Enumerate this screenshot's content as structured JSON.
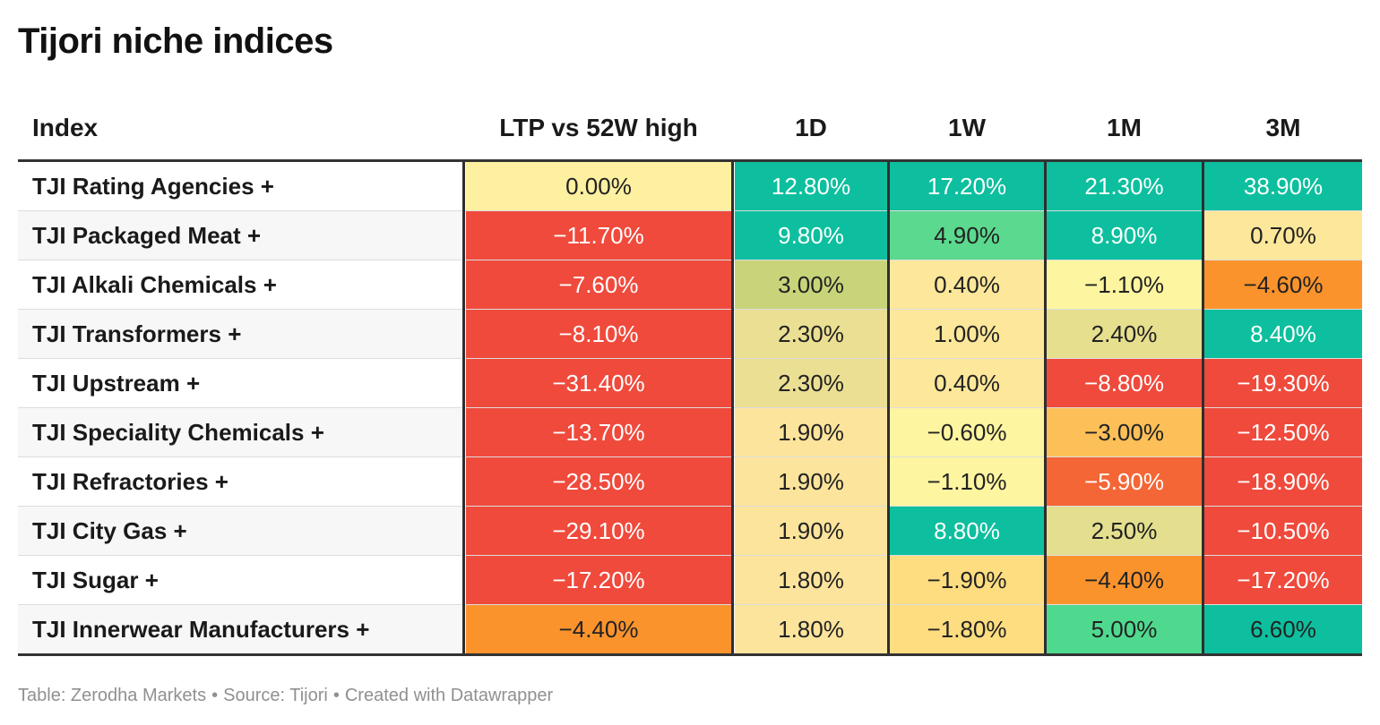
{
  "title": "Tijori niche indices",
  "chart_data": {
    "type": "table",
    "title": "Tijori niche indices",
    "columns": [
      "Index",
      "LTP vs 52W high",
      "1D",
      "1W",
      "1M",
      "3M"
    ],
    "rows": [
      {
        "label": "TJI Rating Agencies +",
        "values": [
          "0.00%",
          "12.80%",
          "17.20%",
          "21.30%",
          "38.90%"
        ],
        "colors": [
          "#fdf0a0",
          "#0dbf9e",
          "#0dbf9e",
          "#0dbf9e",
          "#0dbf9e"
        ],
        "text_colors": [
          "#222222",
          "#ffffff",
          "#ffffff",
          "#ffffff",
          "#ffffff"
        ]
      },
      {
        "label": "TJI Packaged Meat +",
        "values": [
          "−11.70%",
          "9.80%",
          "4.90%",
          "8.90%",
          "0.70%"
        ],
        "colors": [
          "#ef4a3c",
          "#0dbf9e",
          "#5bd98f",
          "#0dbf9e",
          "#fde79a"
        ],
        "text_colors": [
          "#ffffff",
          "#ffffff",
          "#222222",
          "#ffffff",
          "#222222"
        ]
      },
      {
        "label": "TJI Alkali Chemicals +",
        "values": [
          "−7.60%",
          "3.00%",
          "0.40%",
          "−1.10%",
          "−4.60%"
        ],
        "colors": [
          "#ef4a3c",
          "#c9d47a",
          "#fde79a",
          "#fdf5a0",
          "#fb932d"
        ],
        "text_colors": [
          "#ffffff",
          "#222222",
          "#222222",
          "#222222",
          "#222222"
        ]
      },
      {
        "label": "TJI Transformers +",
        "values": [
          "−8.10%",
          "2.30%",
          "1.00%",
          "2.40%",
          "8.40%"
        ],
        "colors": [
          "#ef4a3c",
          "#ebdf93",
          "#fde79a",
          "#e6df8e",
          "#0dbf9e"
        ],
        "text_colors": [
          "#ffffff",
          "#222222",
          "#222222",
          "#222222",
          "#ffffff"
        ]
      },
      {
        "label": "TJI Upstream +",
        "values": [
          "−31.40%",
          "2.30%",
          "0.40%",
          "−8.80%",
          "−19.30%"
        ],
        "colors": [
          "#ef4a3c",
          "#ebdf93",
          "#fde79a",
          "#ef4a3c",
          "#ef4a3c"
        ],
        "text_colors": [
          "#ffffff",
          "#222222",
          "#222222",
          "#ffffff",
          "#ffffff"
        ]
      },
      {
        "label": "TJI Speciality Chemicals +",
        "values": [
          "−13.70%",
          "1.90%",
          "−0.60%",
          "−3.00%",
          "−12.50%"
        ],
        "colors": [
          "#ef4a3c",
          "#fde49c",
          "#fdf5a0",
          "#fdbf58",
          "#ef4a3c"
        ],
        "text_colors": [
          "#ffffff",
          "#222222",
          "#222222",
          "#222222",
          "#ffffff"
        ]
      },
      {
        "label": "TJI Refractories +",
        "values": [
          "−28.50%",
          "1.90%",
          "−1.10%",
          "−5.90%",
          "−18.90%"
        ],
        "colors": [
          "#ef4a3c",
          "#fde49c",
          "#fdf5a0",
          "#f46635",
          "#ef4a3c"
        ],
        "text_colors": [
          "#ffffff",
          "#222222",
          "#222222",
          "#ffffff",
          "#ffffff"
        ]
      },
      {
        "label": "TJI City Gas +",
        "values": [
          "−29.10%",
          "1.90%",
          "8.80%",
          "2.50%",
          "−10.50%"
        ],
        "colors": [
          "#ef4a3c",
          "#fde49c",
          "#0dbf9e",
          "#e3df8e",
          "#ef4a3c"
        ],
        "text_colors": [
          "#ffffff",
          "#222222",
          "#ffffff",
          "#222222",
          "#ffffff"
        ]
      },
      {
        "label": "TJI Sugar +",
        "values": [
          "−17.20%",
          "1.80%",
          "−1.90%",
          "−4.40%",
          "−17.20%"
        ],
        "colors": [
          "#ef4a3c",
          "#fde49c",
          "#fddd80",
          "#fb932d",
          "#ef4a3c"
        ],
        "text_colors": [
          "#ffffff",
          "#222222",
          "#222222",
          "#222222",
          "#ffffff"
        ]
      },
      {
        "label": "TJI Innerwear Manufacturers +",
        "values": [
          "−4.40%",
          "1.80%",
          "−1.80%",
          "5.00%",
          "6.60%"
        ],
        "colors": [
          "#fb932d",
          "#fde49c",
          "#fddd80",
          "#4fd98f",
          "#0dbf9e"
        ],
        "text_colors": [
          "#222222",
          "#222222",
          "#222222",
          "#222222",
          "#222222"
        ]
      }
    ]
  },
  "footer": {
    "table": "Table: Zerodha Markets",
    "separator": "•",
    "source": "Source: Tijori",
    "created": "Created with Datawrapper"
  }
}
